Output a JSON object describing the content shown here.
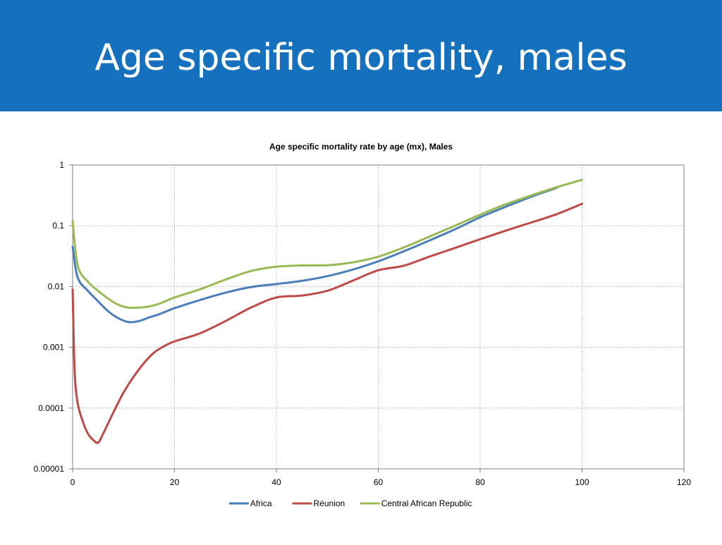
{
  "slide": {
    "title": "Age specific mortality, males"
  },
  "colors": {
    "banner": "#1570bd",
    "title_text": "#ffffff"
  },
  "chart_data": {
    "type": "line",
    "title": "Age specific mortality rate by age (mx), Males",
    "xlabel": "",
    "ylabel": "",
    "xlim": [
      0,
      120
    ],
    "ylim": [
      1e-05,
      1
    ],
    "yscale": "log",
    "grid": true,
    "legend_position": "bottom",
    "x_ticks": [
      0,
      20,
      40,
      60,
      80,
      100,
      120
    ],
    "x_tick_labels": [
      "0",
      "20",
      "40",
      "60",
      "80",
      "100",
      "120"
    ],
    "y_ticks": [
      1e-05,
      0.0001,
      0.001,
      0.01,
      0.1,
      1
    ],
    "y_tick_labels": [
      "0.00001",
      "0.0001",
      "0.001",
      "0.01",
      "0.1",
      "1"
    ],
    "series": [
      {
        "name": "Africa",
        "color": "#4a7ebb",
        "points": [
          [
            0,
            0.045
          ],
          [
            1,
            0.014
          ],
          [
            3,
            0.0085
          ],
          [
            5,
            0.0057
          ],
          [
            7,
            0.0039
          ],
          [
            9,
            0.003
          ],
          [
            11,
            0.0026
          ],
          [
            13,
            0.0027
          ],
          [
            15,
            0.0031
          ],
          [
            17,
            0.0035
          ],
          [
            20,
            0.0044
          ],
          [
            25,
            0.006
          ],
          [
            30,
            0.0079
          ],
          [
            35,
            0.0098
          ],
          [
            40,
            0.011
          ],
          [
            45,
            0.0124
          ],
          [
            50,
            0.0148
          ],
          [
            55,
            0.019
          ],
          [
            60,
            0.026
          ],
          [
            65,
            0.038
          ],
          [
            70,
            0.057
          ],
          [
            75,
            0.087
          ],
          [
            80,
            0.138
          ],
          [
            85,
            0.205
          ],
          [
            90,
            0.3
          ],
          [
            95,
            0.42
          ]
        ]
      },
      {
        "name": "Réunion",
        "color": "#be4b48",
        "points": [
          [
            0,
            0.009
          ],
          [
            0.4,
            0.0004
          ],
          [
            1,
            0.00012
          ],
          [
            2,
            6e-05
          ],
          [
            3,
            3.8e-05
          ],
          [
            4,
            3e-05
          ],
          [
            5,
            2.7e-05
          ],
          [
            6,
            3.8e-05
          ],
          [
            8,
            8.5e-05
          ],
          [
            10,
            0.00018
          ],
          [
            12,
            0.00033
          ],
          [
            14,
            0.00055
          ],
          [
            16,
            0.00082
          ],
          [
            18,
            0.00105
          ],
          [
            20,
            0.00125
          ],
          [
            25,
            0.0017
          ],
          [
            30,
            0.0027
          ],
          [
            35,
            0.0045
          ],
          [
            40,
            0.0066
          ],
          [
            45,
            0.0071
          ],
          [
            50,
            0.0085
          ],
          [
            55,
            0.0125
          ],
          [
            60,
            0.0185
          ],
          [
            65,
            0.022
          ],
          [
            70,
            0.031
          ],
          [
            75,
            0.043
          ],
          [
            80,
            0.06
          ],
          [
            85,
            0.083
          ],
          [
            90,
            0.113
          ],
          [
            95,
            0.155
          ],
          [
            100,
            0.23
          ]
        ]
      },
      {
        "name": "Central African Republic",
        "color": "#98b954",
        "points": [
          [
            0,
            0.12
          ],
          [
            1,
            0.022
          ],
          [
            3,
            0.012
          ],
          [
            5,
            0.0085
          ],
          [
            7,
            0.0063
          ],
          [
            9,
            0.005
          ],
          [
            11,
            0.0045
          ],
          [
            13,
            0.0045
          ],
          [
            15,
            0.0047
          ],
          [
            17,
            0.0052
          ],
          [
            20,
            0.0066
          ],
          [
            25,
            0.009
          ],
          [
            30,
            0.013
          ],
          [
            35,
            0.018
          ],
          [
            40,
            0.0212
          ],
          [
            45,
            0.0222
          ],
          [
            50,
            0.0224
          ],
          [
            55,
            0.025
          ],
          [
            60,
            0.031
          ],
          [
            65,
            0.044
          ],
          [
            70,
            0.066
          ],
          [
            75,
            0.1
          ],
          [
            80,
            0.152
          ],
          [
            85,
            0.225
          ],
          [
            90,
            0.315
          ],
          [
            95,
            0.43
          ],
          [
            100,
            0.57
          ]
        ]
      }
    ]
  }
}
